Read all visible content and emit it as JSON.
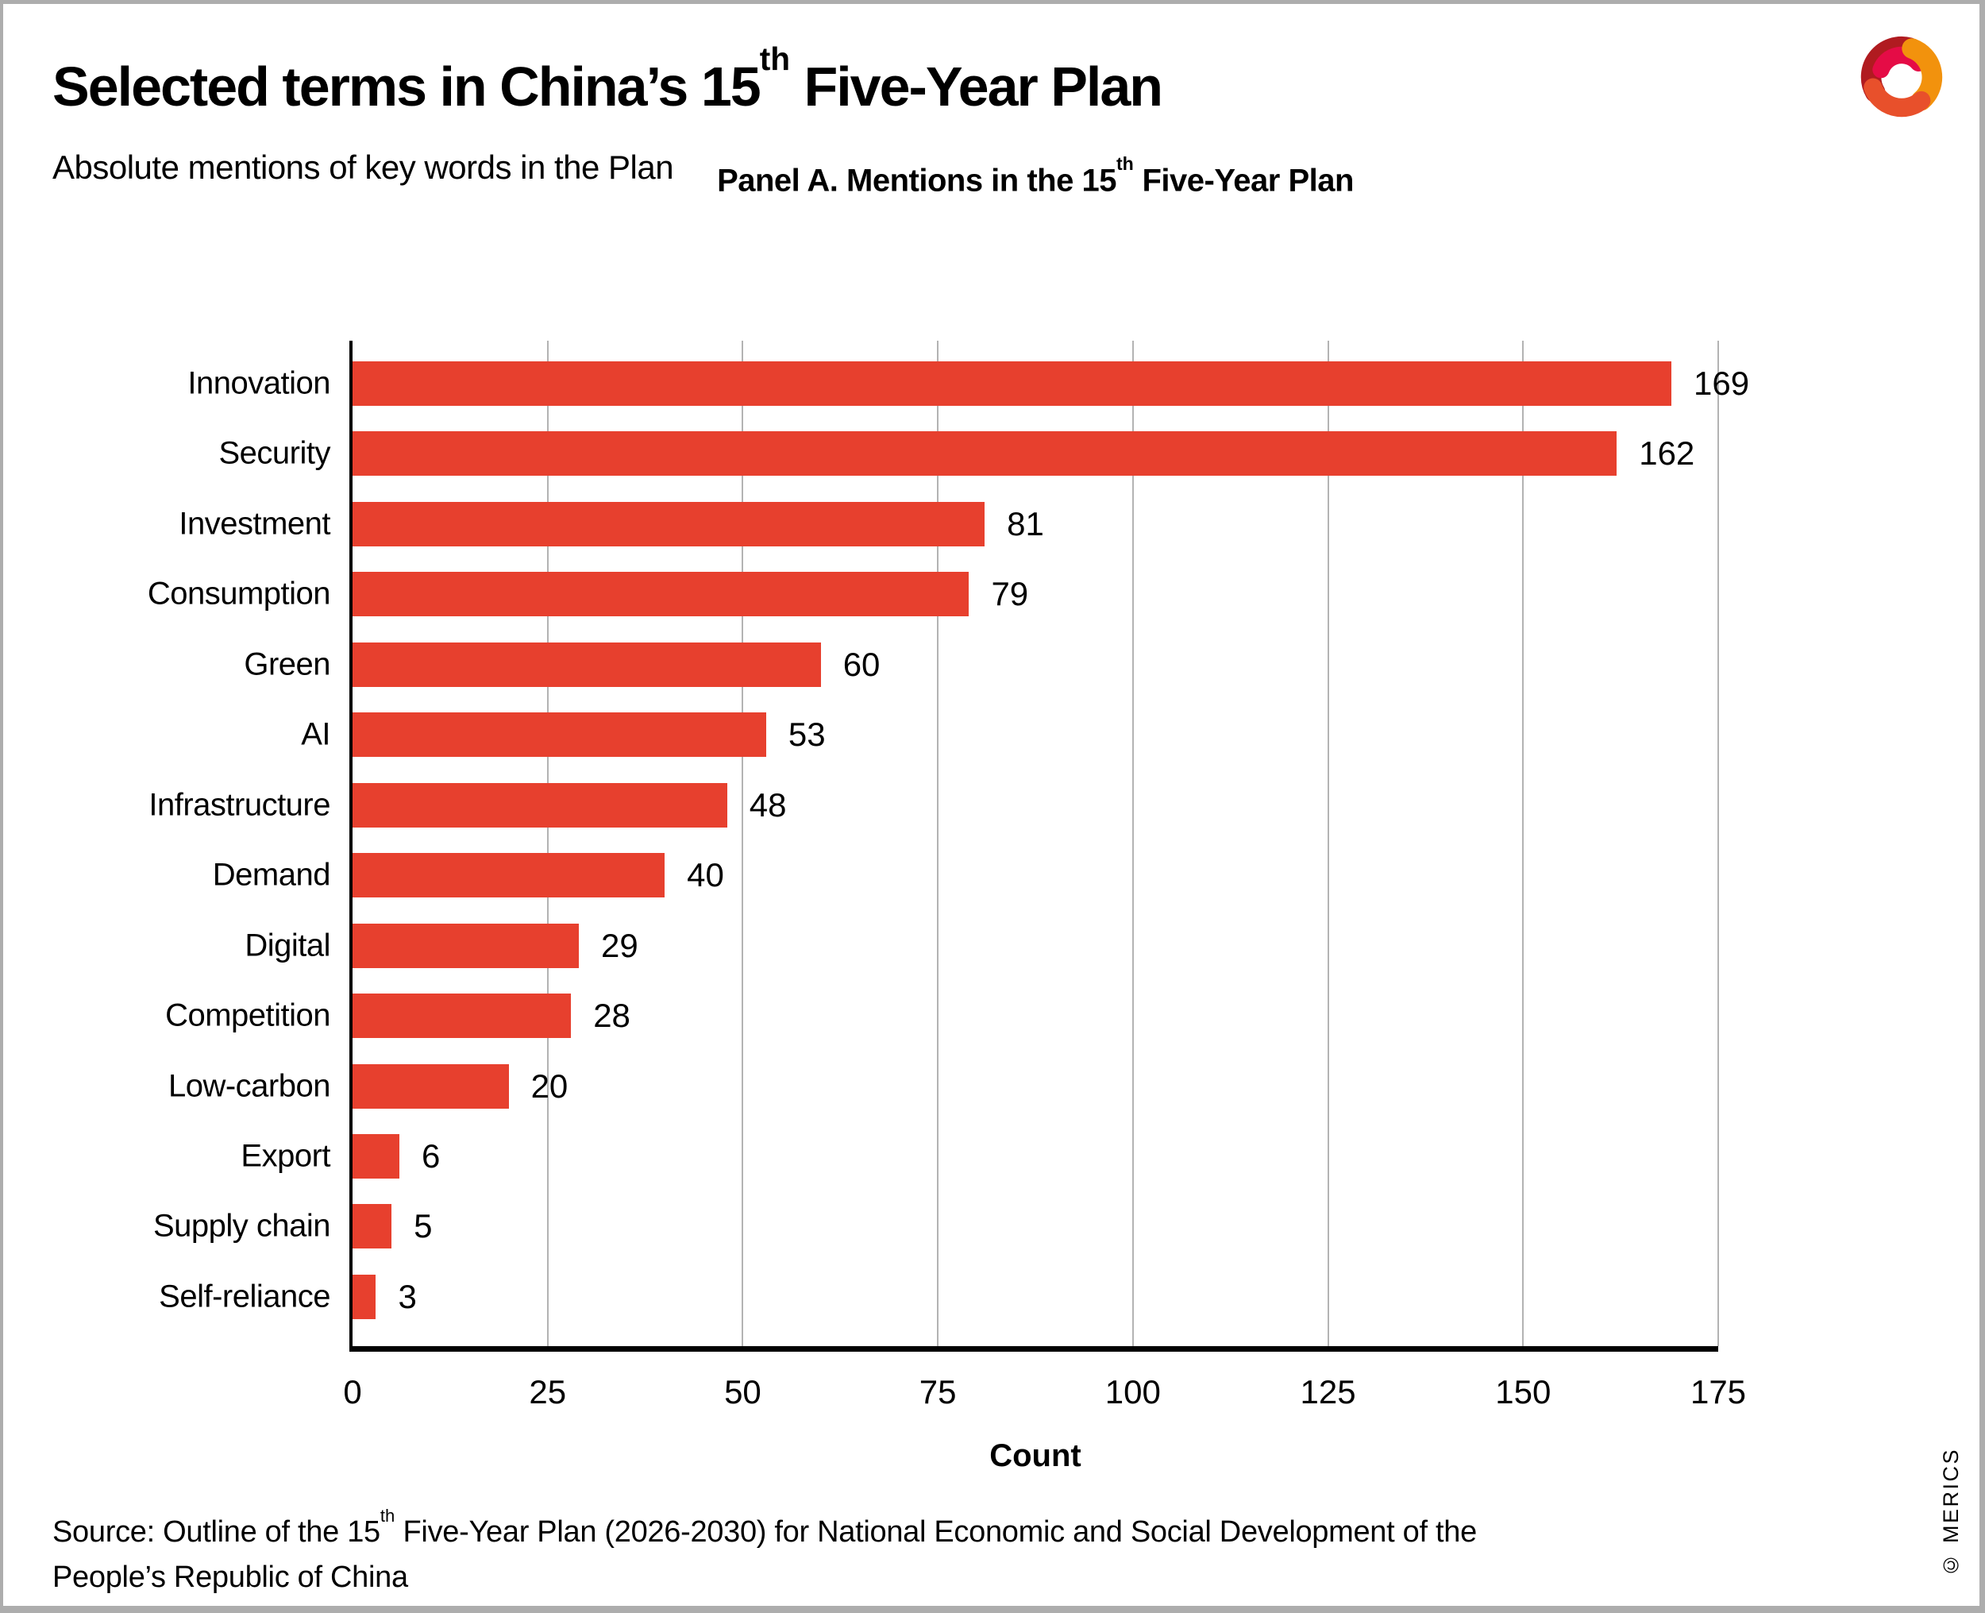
{
  "header": {
    "title_prefix": "Selected terms in China’s 15",
    "title_sup": "th",
    "title_rest": " Five-Year Plan",
    "subtitle": "Absolute mentions of key words in the Plan"
  },
  "logo": {
    "name": "MERICS swirl logo",
    "colors": {
      "dark_red": "#B01B20",
      "magenta": "#E50C46",
      "orange": "#F2920D",
      "red_orange": "#E8502B"
    }
  },
  "panel": {
    "title_prefix": "Panel A. Mentions in the 15",
    "title_sup": "th",
    "title_rest": " Five-Year Plan"
  },
  "chart_data": {
    "type": "bar",
    "orientation": "horizontal",
    "categories": [
      "Innovation",
      "Security",
      "Investment",
      "Consumption",
      "Green",
      "AI",
      "Infrastructure",
      "Demand",
      "Digital",
      "Competition",
      "Low-carbon",
      "Export",
      "Supply chain",
      "Self-reliance"
    ],
    "values": [
      169,
      162,
      81,
      79,
      60,
      53,
      48,
      40,
      29,
      28,
      20,
      6,
      5,
      3
    ],
    "title": "Panel A. Mentions in the 15th Five-Year Plan",
    "xlabel": "Count",
    "ylabel": "",
    "xlim": [
      0,
      175
    ],
    "xticks": [
      0,
      25,
      50,
      75,
      100,
      125,
      150,
      175
    ],
    "grid": "vertical gridlines at each x tick",
    "legend": "none",
    "value_labels_shown": true,
    "bar_color": "#E7402E",
    "gridline_color": "#B3B3B3",
    "axis_color": "#000000"
  },
  "source": {
    "line1_prefix": "Source: Outline of the 15",
    "line1_sup": "th",
    "line1_rest": " Five-Year Plan (2026-2030) for National Economic and Social Development of the",
    "line2": "People’s Republic of China"
  },
  "footer": {
    "copyright": "© MERICS"
  }
}
